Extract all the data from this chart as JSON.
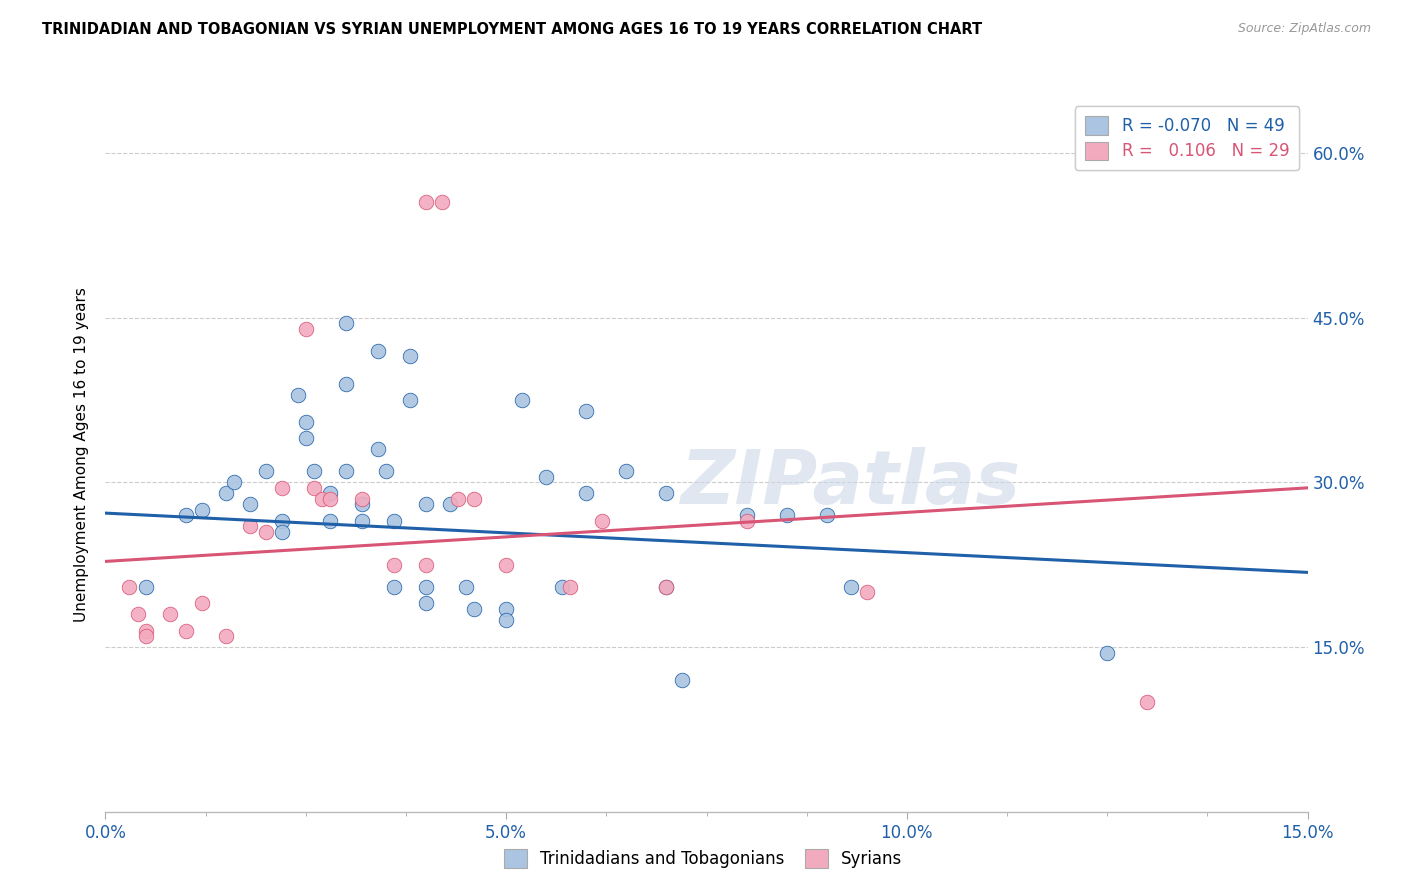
{
  "title": "TRINIDADIAN AND TOBAGONIAN VS SYRIAN UNEMPLOYMENT AMONG AGES 16 TO 19 YEARS CORRELATION CHART",
  "source": "Source: ZipAtlas.com",
  "ylabel": "Unemployment Among Ages 16 to 19 years",
  "xlim": [
    0.0,
    0.15
  ],
  "ylim": [
    0.0,
    0.65
  ],
  "xtick_labels": [
    "0.0%",
    "",
    "",
    "",
    "5.0%",
    "",
    "",
    "",
    "10.0%",
    "",
    "",
    "",
    "15.0%"
  ],
  "xtick_vals": [
    0.0,
    0.0125,
    0.025,
    0.0375,
    0.05,
    0.0625,
    0.075,
    0.0875,
    0.1,
    0.1125,
    0.125,
    0.1375,
    0.15
  ],
  "xtick_major_vals": [
    0.0,
    0.05,
    0.1,
    0.15
  ],
  "xtick_major_labels": [
    "0.0%",
    "5.0%",
    "10.0%",
    "15.0%"
  ],
  "ytick_labels_right": [
    "60.0%",
    "45.0%",
    "30.0%",
    "15.0%"
  ],
  "ytick_vals": [
    0.6,
    0.45,
    0.3,
    0.15
  ],
  "blue_R": "-0.070",
  "blue_N": "49",
  "pink_R": "0.106",
  "pink_N": "29",
  "blue_color": "#aac4e2",
  "pink_color": "#f2aabf",
  "blue_line_color": "#2060a8",
  "pink_line_color": "#d85575",
  "watermark": "ZIPatlas",
  "blue_scatter": [
    [
      0.005,
      0.205
    ],
    [
      0.01,
      0.27
    ],
    [
      0.012,
      0.275
    ],
    [
      0.015,
      0.29
    ],
    [
      0.016,
      0.3
    ],
    [
      0.018,
      0.28
    ],
    [
      0.02,
      0.31
    ],
    [
      0.022,
      0.265
    ],
    [
      0.022,
      0.255
    ],
    [
      0.024,
      0.38
    ],
    [
      0.025,
      0.355
    ],
    [
      0.025,
      0.34
    ],
    [
      0.026,
      0.31
    ],
    [
      0.028,
      0.29
    ],
    [
      0.028,
      0.265
    ],
    [
      0.03,
      0.445
    ],
    [
      0.03,
      0.39
    ],
    [
      0.03,
      0.31
    ],
    [
      0.032,
      0.28
    ],
    [
      0.032,
      0.265
    ],
    [
      0.034,
      0.42
    ],
    [
      0.034,
      0.33
    ],
    [
      0.035,
      0.31
    ],
    [
      0.036,
      0.265
    ],
    [
      0.036,
      0.205
    ],
    [
      0.038,
      0.415
    ],
    [
      0.038,
      0.375
    ],
    [
      0.04,
      0.28
    ],
    [
      0.04,
      0.205
    ],
    [
      0.04,
      0.19
    ],
    [
      0.043,
      0.28
    ],
    [
      0.045,
      0.205
    ],
    [
      0.046,
      0.185
    ],
    [
      0.05,
      0.185
    ],
    [
      0.05,
      0.175
    ],
    [
      0.052,
      0.375
    ],
    [
      0.055,
      0.305
    ],
    [
      0.057,
      0.205
    ],
    [
      0.06,
      0.365
    ],
    [
      0.06,
      0.29
    ],
    [
      0.065,
      0.31
    ],
    [
      0.07,
      0.29
    ],
    [
      0.07,
      0.205
    ],
    [
      0.072,
      0.12
    ],
    [
      0.08,
      0.27
    ],
    [
      0.085,
      0.27
    ],
    [
      0.09,
      0.27
    ],
    [
      0.093,
      0.205
    ],
    [
      0.125,
      0.145
    ]
  ],
  "pink_scatter": [
    [
      0.003,
      0.205
    ],
    [
      0.004,
      0.18
    ],
    [
      0.005,
      0.165
    ],
    [
      0.005,
      0.16
    ],
    [
      0.008,
      0.18
    ],
    [
      0.01,
      0.165
    ],
    [
      0.012,
      0.19
    ],
    [
      0.015,
      0.16
    ],
    [
      0.018,
      0.26
    ],
    [
      0.02,
      0.255
    ],
    [
      0.022,
      0.295
    ],
    [
      0.025,
      0.44
    ],
    [
      0.026,
      0.295
    ],
    [
      0.027,
      0.285
    ],
    [
      0.028,
      0.285
    ],
    [
      0.032,
      0.285
    ],
    [
      0.036,
      0.225
    ],
    [
      0.04,
      0.555
    ],
    [
      0.042,
      0.555
    ],
    [
      0.04,
      0.225
    ],
    [
      0.044,
      0.285
    ],
    [
      0.046,
      0.285
    ],
    [
      0.05,
      0.225
    ],
    [
      0.058,
      0.205
    ],
    [
      0.062,
      0.265
    ],
    [
      0.07,
      0.205
    ],
    [
      0.08,
      0.265
    ],
    [
      0.095,
      0.2
    ],
    [
      0.13,
      0.1
    ]
  ],
  "blue_trend_x": [
    0.0,
    0.15
  ],
  "blue_trend_y": [
    0.272,
    0.218
  ],
  "pink_trend_x": [
    0.0,
    0.15
  ],
  "pink_trend_y": [
    0.228,
    0.295
  ]
}
